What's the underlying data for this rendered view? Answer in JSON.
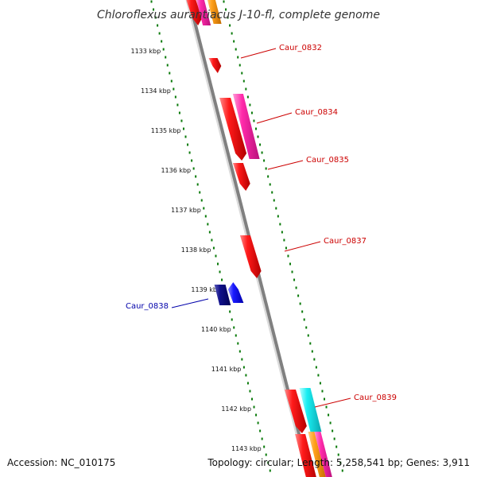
{
  "title": "Chloroflexus aurantiacus J-10-fl, complete genome",
  "footer": {
    "accession": "Accession: NC_010175",
    "summary": "Topology: circular; Length: 5,258,541 bp; Genes: 3,911"
  },
  "colors": {
    "red": "#ee0000",
    "magenta": "#ff22aa",
    "cyan": "#00e6ee",
    "orange": "#ff9a10",
    "navy": "#000088",
    "blue": "#0000ee",
    "tick_green": "#0a7a0a",
    "backbone": "#888888",
    "red_label": "#cc0000",
    "blue_label": "#0000aa"
  },
  "ticks": [
    {
      "label": "1133 kbp",
      "kbp": 1133
    },
    {
      "label": "1134 kbp",
      "kbp": 1134
    },
    {
      "label": "1135 kbp",
      "kbp": 1135
    },
    {
      "label": "1136 kbp",
      "kbp": 1136
    },
    {
      "label": "1137 kbp",
      "kbp": 1137
    },
    {
      "label": "1138 kbp",
      "kbp": 1138
    },
    {
      "label": "1139 kbp",
      "kbp": 1139
    },
    {
      "label": "1140 kbp",
      "kbp": 1140
    },
    {
      "label": "1141 kbp",
      "kbp": 1141
    },
    {
      "label": "1142 kbp",
      "kbp": 1142
    },
    {
      "label": "1143 kbp",
      "kbp": 1143
    }
  ],
  "gene_labels": [
    {
      "text": "Caur_0832",
      "color": "red_label"
    },
    {
      "text": "Caur_0834",
      "color": "red_label"
    },
    {
      "text": "Caur_0835",
      "color": "red_label"
    },
    {
      "text": "Caur_0837",
      "color": "red_label"
    },
    {
      "text": "Caur_0838",
      "color": "blue_label"
    },
    {
      "text": "Caur_0839",
      "color": "red_label"
    }
  ]
}
